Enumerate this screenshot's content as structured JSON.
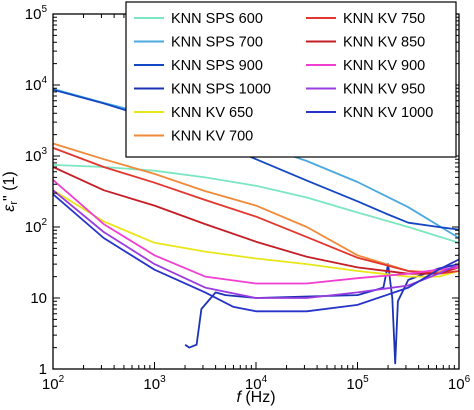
{
  "chart_data": {
    "type": "line",
    "xlabel_symbol": "f",
    "xlabel_unit": " (Hz)",
    "ylabel_symbol": "ε",
    "ylabel_sub": "r",
    "ylabel_prime": "\"",
    "ylabel_unit": " (1)",
    "xscale": "log",
    "yscale": "log",
    "xlim": [
      100,
      1000000
    ],
    "ylim": [
      1,
      100000
    ],
    "x_ticks": [
      {
        "b": "10",
        "e": "2",
        "v": 100
      },
      {
        "b": "10",
        "e": "3",
        "v": 1000
      },
      {
        "b": "10",
        "e": "4",
        "v": 10000
      },
      {
        "b": "10",
        "e": "5",
        "v": 100000
      },
      {
        "b": "10",
        "e": "6",
        "v": 1000000
      }
    ],
    "y_ticks": [
      {
        "b": "1",
        "e": "",
        "v": 1
      },
      {
        "b": "10",
        "e": "",
        "v": 10
      },
      {
        "b": "10",
        "e": "2",
        "v": 100
      },
      {
        "b": "10",
        "e": "3",
        "v": 1000
      },
      {
        "b": "10",
        "e": "4",
        "v": 10000
      },
      {
        "b": "10",
        "e": "5",
        "v": 100000
      }
    ],
    "grid": false,
    "legend_position": "top-right",
    "series": [
      {
        "name": "KNN SPS 600",
        "color": "#7be6bf",
        "x": [
          100,
          316,
          1000,
          3162,
          10000,
          31623,
          100000,
          316228,
          1000000
        ],
        "y": [
          750,
          700,
          620,
          500,
          380,
          260,
          160,
          100,
          60
        ]
      },
      {
        "name": "KNN SPS 700",
        "color": "#4aa8df",
        "x": [
          100,
          316,
          1000,
          3162,
          10000,
          31623,
          100000,
          316228,
          1000000
        ],
        "y": [
          8800,
          5600,
          3700,
          2400,
          1500,
          850,
          430,
          190,
          70
        ]
      },
      {
        "name": "KNN SPS 900",
        "color": "#1447c4",
        "x": [
          100,
          316,
          1000,
          3162,
          10000,
          31623,
          100000,
          200000,
          316228,
          630000,
          1000000
        ],
        "y": [
          8600,
          5500,
          3300,
          1800,
          900,
          450,
          230,
          150,
          115,
          100,
          92
        ]
      },
      {
        "name": "KNN SPS 1000",
        "color": "#1c33b5",
        "x": [
          2000,
          2200,
          2600,
          2900,
          4000,
          5000,
          10000,
          31623,
          100000,
          180000,
          200000,
          220000,
          235000,
          250000,
          316228,
          630000,
          1000000
        ],
        "y": [
          2.2,
          2.0,
          2.2,
          7,
          12,
          11,
          10,
          10.5,
          11,
          14,
          30,
          10,
          1.2,
          9,
          18,
          26,
          30
        ]
      },
      {
        "name": "KNN KV 650",
        "color": "#e8e619",
        "x": [
          100,
          316,
          1000,
          3162,
          10000,
          31623,
          100000,
          316228,
          630000,
          1000000
        ],
        "y": [
          330,
          120,
          60,
          45,
          36,
          30,
          24,
          20,
          20,
          24
        ]
      },
      {
        "name": "KNN KV 700",
        "color": "#ef8a3a",
        "x": [
          100,
          316,
          1000,
          3162,
          10000,
          31623,
          100000,
          316228,
          630000,
          1000000
        ],
        "y": [
          1500,
          900,
          560,
          320,
          200,
          100,
          40,
          24,
          23,
          28
        ]
      },
      {
        "name": "KNN KV 750",
        "color": "#e2362e",
        "x": [
          100,
          316,
          1000,
          3162,
          10000,
          31623,
          100000,
          316228,
          630000,
          1000000
        ],
        "y": [
          1300,
          700,
          420,
          240,
          140,
          72,
          37,
          24,
          22,
          24
        ]
      },
      {
        "name": "KNN KV 850",
        "color": "#c41d25",
        "x": [
          100,
          316,
          1000,
          3162,
          10000,
          31623,
          100000,
          316228,
          630000,
          1000000
        ],
        "y": [
          700,
          330,
          200,
          110,
          62,
          38,
          27,
          22,
          22,
          27
        ]
      },
      {
        "name": "KNN KV 900",
        "color": "#f03ed1",
        "x": [
          100,
          316,
          1000,
          3162,
          10000,
          31623,
          100000,
          316228,
          630000,
          1000000
        ],
        "y": [
          460,
          110,
          40,
          20,
          16,
          16,
          19,
          22,
          25,
          27
        ]
      },
      {
        "name": "KNN KV 950",
        "color": "#9b3be0",
        "x": [
          100,
          316,
          1000,
          3162,
          10000,
          31623,
          100000,
          316228,
          630000,
          1000000
        ],
        "y": [
          330,
          85,
          30,
          14,
          10,
          10,
          12,
          15,
          22,
          30
        ]
      },
      {
        "name": "KNN KV 1000",
        "color": "#2634c9",
        "x": [
          100,
          316,
          1000,
          3162,
          6000,
          10000,
          31623,
          100000,
          316228,
          630000,
          1000000
        ],
        "y": [
          290,
          70,
          25,
          12,
          7.5,
          6.5,
          6.5,
          8,
          14,
          25,
          35
        ]
      }
    ]
  }
}
